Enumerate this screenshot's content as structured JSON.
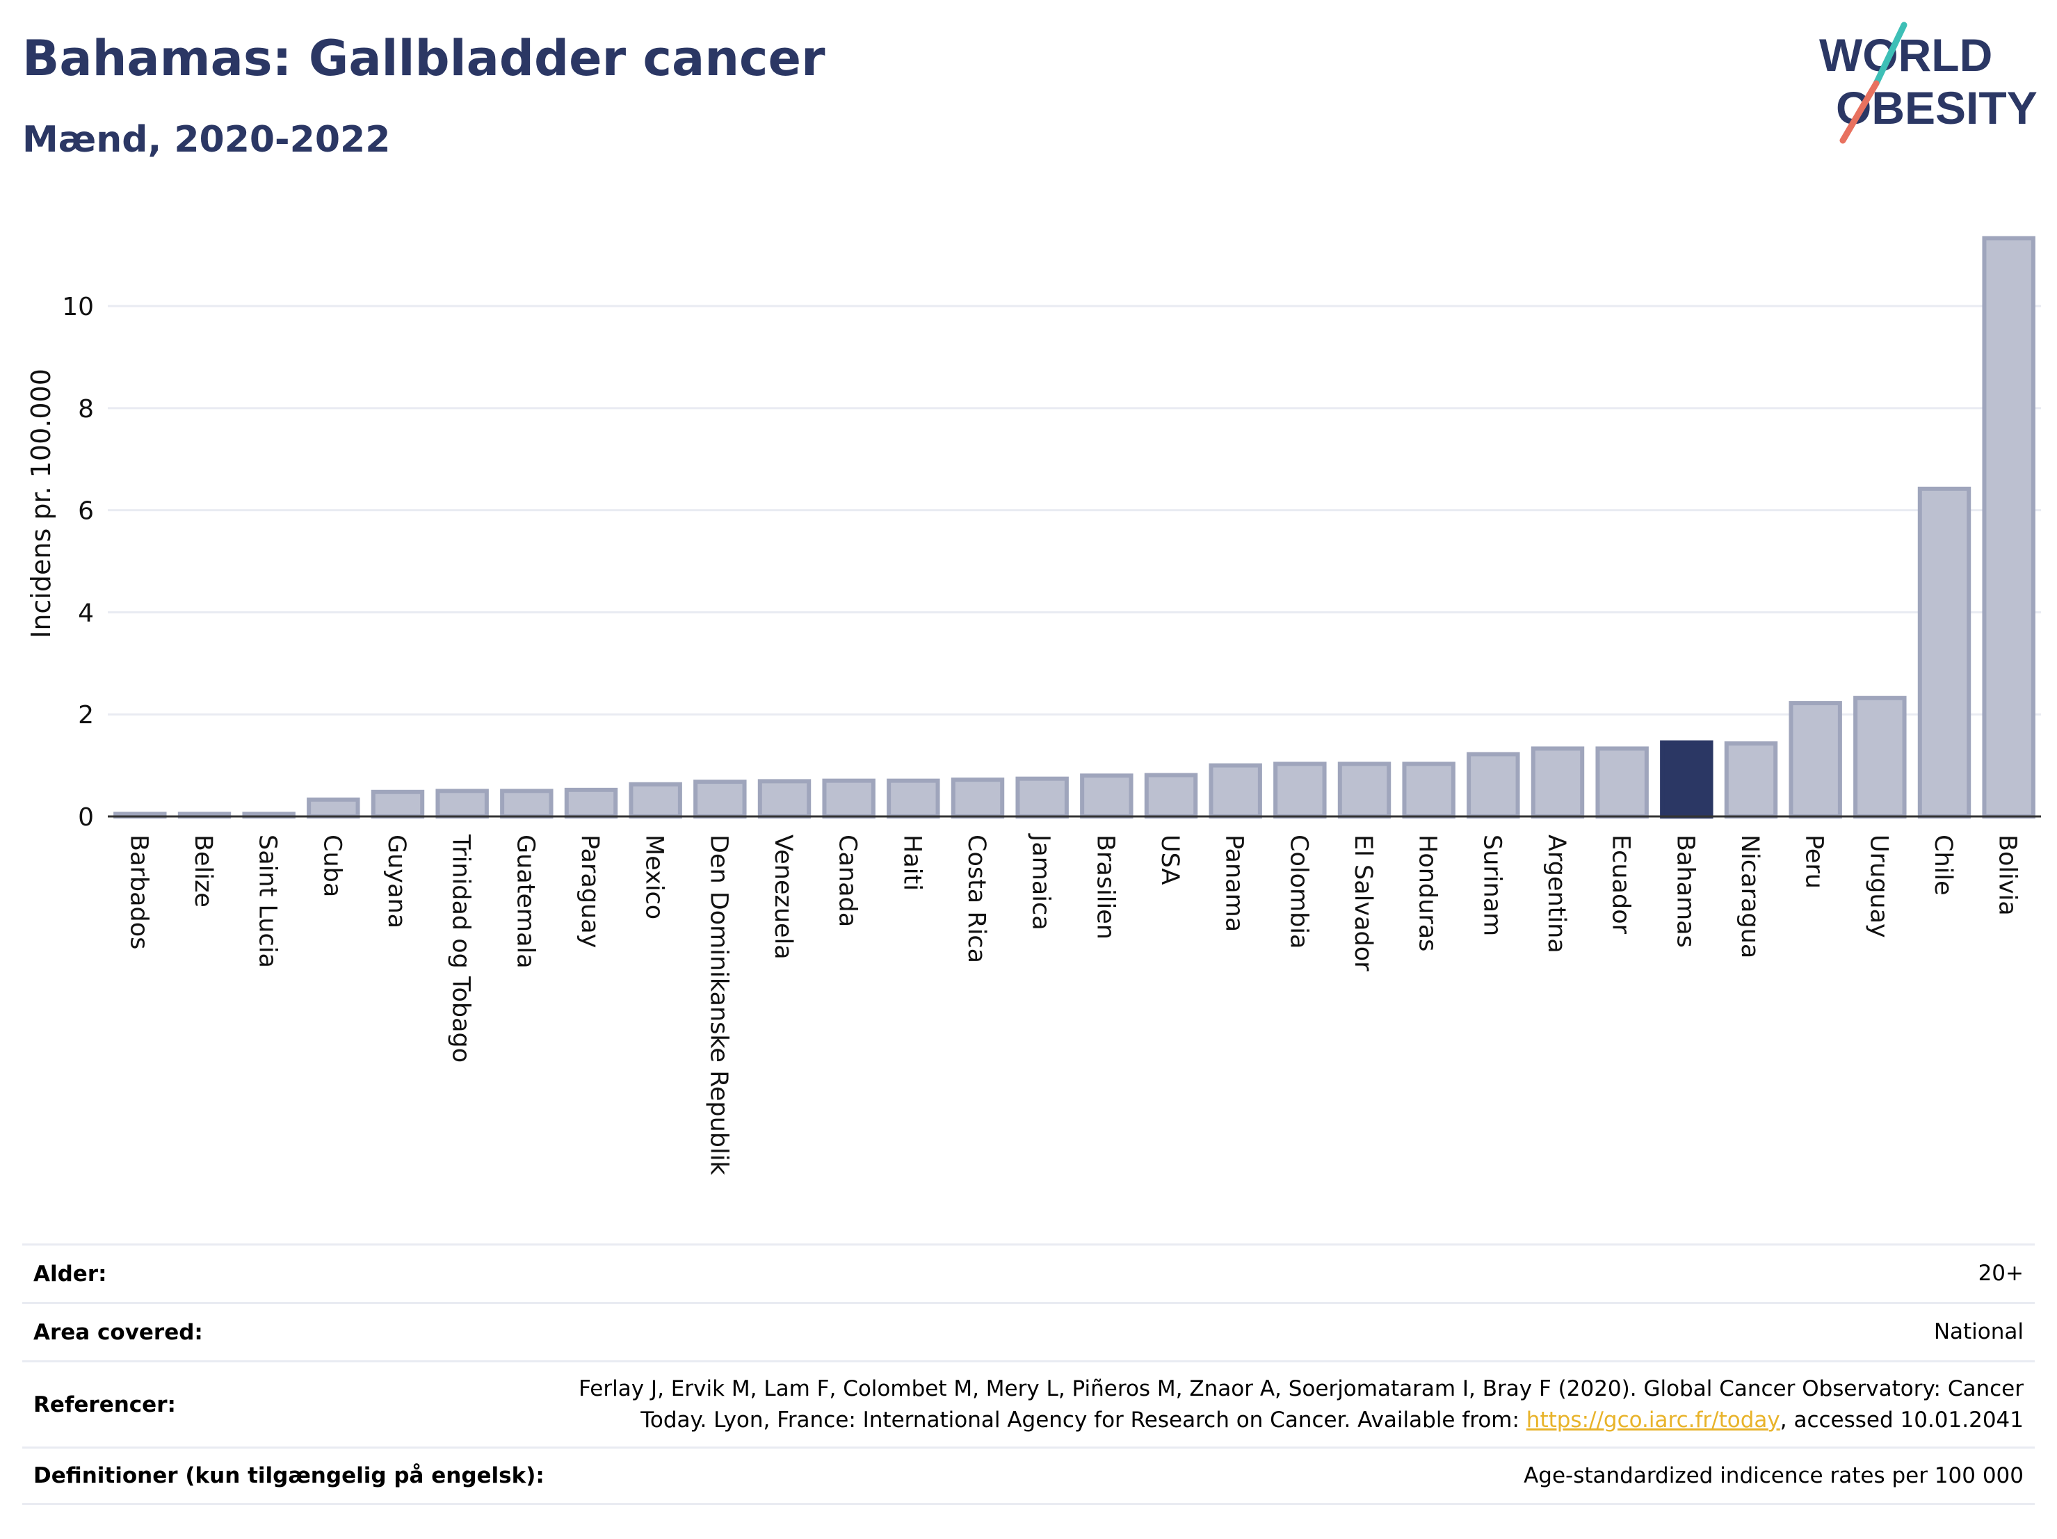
{
  "header": {
    "title": "Bahamas: Gallbladder cancer",
    "subtitle": "Mænd, 2020-2022"
  },
  "logo": {
    "line1": "WORLD",
    "line2": "OBESITY",
    "colors": {
      "text": "#2b3764",
      "slash_top": "#3dbfb6",
      "slash_bottom": "#e8715f"
    }
  },
  "chart_data": {
    "type": "bar",
    "ylabel": "Incidens pr. 100.000",
    "xlabel": "",
    "ylim": [
      0,
      11.8
    ],
    "yticks": [
      0,
      2,
      4,
      6,
      8,
      10
    ],
    "grid": true,
    "highlight": "Bahamas",
    "colors": {
      "bar": "#bcc0d0",
      "bar_edge": "#9fa5bc",
      "highlight": "#2b3764"
    },
    "categories": [
      "Barbados",
      "Belize",
      "Saint Lucia",
      "Cuba",
      "Guyana",
      "Trinidad og Tobago",
      "Guatemala",
      "Paraguay",
      "Mexico",
      "Den Dominikanske Republik",
      "Venezuela",
      "Canada",
      "Haiti",
      "Costa Rica",
      "Jamaica",
      "Brasilien",
      "USA",
      "Panama",
      "Colombia",
      "El Salvador",
      "Honduras",
      "Surinam",
      "Argentina",
      "Ecuador",
      "Bahamas",
      "Nicaragua",
      "Peru",
      "Uruguay",
      "Chile",
      "Bolivia"
    ],
    "values": [
      0.05,
      0.05,
      0.05,
      0.33,
      0.48,
      0.5,
      0.5,
      0.52,
      0.63,
      0.68,
      0.69,
      0.7,
      0.7,
      0.72,
      0.74,
      0.8,
      0.81,
      1.0,
      1.03,
      1.03,
      1.03,
      1.22,
      1.33,
      1.33,
      1.45,
      1.43,
      2.22,
      2.32,
      6.42,
      11.33
    ]
  },
  "info": [
    {
      "label": "Alder:",
      "value": "20+"
    },
    {
      "label": "Area covered:",
      "value": "National"
    },
    {
      "label": "Referencer:",
      "value_line1": "Ferlay J, Ervik M, Lam F, Colombet M, Mery L, Piñeros M, Znaor A, Soerjomataram I, Bray F (2020). Global Cancer Observatory: Cancer",
      "value_line2_pre": "Today. Lyon, France: International Agency for Research on Cancer. Available from: ",
      "link": "https://gco.iarc.fr/today",
      "value_line2_post": ", accessed 10.01.2041"
    },
    {
      "label": "Definitioner (kun tilgængelig på engelsk):",
      "value": "Age-standardized indicence rates per 100 000"
    }
  ]
}
